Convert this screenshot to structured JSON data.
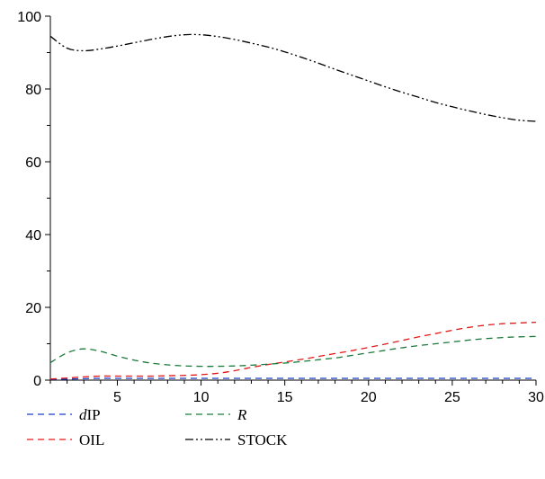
{
  "chart_data": {
    "type": "line",
    "title": "",
    "xlabel": "",
    "ylabel": "",
    "xlim": [
      1,
      30
    ],
    "ylim": [
      0,
      100
    ],
    "x_ticks": [
      5,
      10,
      15,
      20,
      25,
      30
    ],
    "y_ticks": [
      0,
      20,
      40,
      60,
      80,
      100
    ],
    "grid": false,
    "legend_position": "bottom-left",
    "series": [
      {
        "name": "dIP",
        "name_prefix_italic": "d",
        "name_suffix": "IP",
        "color": "#1f3fbf",
        "dash": "dashed",
        "x": [
          1,
          2,
          3,
          4,
          5,
          6,
          7,
          8,
          9,
          10,
          11,
          12,
          13,
          14,
          15,
          16,
          17,
          18,
          19,
          20,
          21,
          22,
          23,
          24,
          25,
          26,
          27,
          28,
          29,
          30
        ],
        "values": [
          0.2,
          0.3,
          0.4,
          0.5,
          0.5,
          0.5,
          0.5,
          0.5,
          0.5,
          0.5,
          0.5,
          0.5,
          0.5,
          0.5,
          0.5,
          0.5,
          0.5,
          0.5,
          0.5,
          0.5,
          0.5,
          0.5,
          0.5,
          0.5,
          0.5,
          0.5,
          0.5,
          0.5,
          0.5,
          0.5
        ]
      },
      {
        "name": "OIL",
        "color": "#e01a1a",
        "dash": "dashed",
        "x": [
          1,
          2,
          3,
          4,
          5,
          6,
          7,
          8,
          9,
          10,
          11,
          12,
          13,
          14,
          15,
          16,
          17,
          18,
          19,
          20,
          21,
          22,
          23,
          24,
          25,
          26,
          27,
          28,
          29,
          30
        ],
        "values": [
          0.3,
          0.6,
          0.9,
          1.1,
          1.1,
          1.1,
          1.1,
          1.2,
          1.3,
          1.5,
          1.9,
          2.6,
          3.5,
          4.3,
          5.0,
          5.7,
          6.5,
          7.3,
          8.1,
          9.0,
          9.9,
          10.9,
          11.9,
          12.8,
          13.7,
          14.5,
          15.1,
          15.5,
          15.7,
          15.9
        ]
      },
      {
        "name": "R",
        "italic": true,
        "color": "#1a7a3a",
        "dash": "dashed",
        "x": [
          1,
          2,
          3,
          4,
          5,
          6,
          7,
          8,
          9,
          10,
          11,
          12,
          13,
          14,
          15,
          16,
          17,
          18,
          19,
          20,
          21,
          22,
          23,
          24,
          25,
          26,
          27,
          28,
          29,
          30
        ],
        "values": [
          4.8,
          7.5,
          8.6,
          7.9,
          6.6,
          5.5,
          4.7,
          4.2,
          3.9,
          3.8,
          3.8,
          3.9,
          4.1,
          4.4,
          4.7,
          5.1,
          5.6,
          6.1,
          6.8,
          7.5,
          8.2,
          8.9,
          9.5,
          10.0,
          10.5,
          11.0,
          11.4,
          11.7,
          11.9,
          12.0
        ]
      },
      {
        "name": "STOCK",
        "color": "#000000",
        "dash": "dash-dot-dot",
        "x": [
          1,
          2,
          3,
          4,
          5,
          6,
          7,
          8,
          9,
          10,
          11,
          12,
          13,
          14,
          15,
          16,
          17,
          18,
          19,
          20,
          21,
          22,
          23,
          24,
          25,
          26,
          27,
          28,
          29,
          30
        ],
        "values": [
          94.5,
          91.2,
          90.5,
          91.0,
          91.8,
          92.7,
          93.6,
          94.4,
          94.9,
          94.9,
          94.4,
          93.6,
          92.6,
          91.5,
          90.2,
          88.7,
          87.1,
          85.4,
          83.8,
          82.2,
          80.6,
          79.1,
          77.7,
          76.3,
          75.1,
          74.0,
          73.0,
          72.1,
          71.4,
          71.1
        ]
      }
    ]
  }
}
